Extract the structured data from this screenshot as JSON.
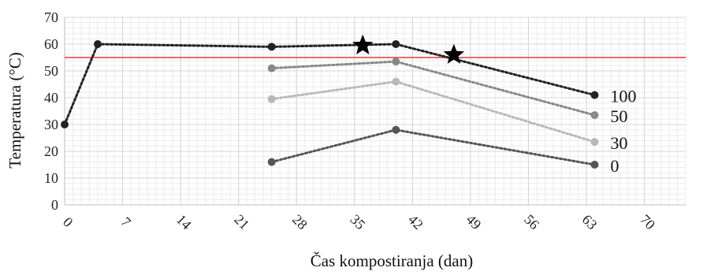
{
  "chart_data": {
    "type": "line",
    "xlabel": "Čas kompostiranja (dan)",
    "ylabel": "Temperatura (°C)",
    "xlim": [
      0,
      75
    ],
    "ylim": [
      0,
      70
    ],
    "x_ticks": [
      0,
      7,
      14,
      21,
      28,
      35,
      42,
      49,
      56,
      63,
      70
    ],
    "y_ticks": [
      0,
      10,
      20,
      30,
      40,
      50,
      60,
      70
    ],
    "grid": true,
    "reference_line": {
      "y": 55,
      "color": "#e03a3a"
    },
    "series": [
      {
        "name": "100",
        "color": "#222222",
        "points": [
          {
            "x": 0,
            "y": 30
          },
          {
            "x": 4,
            "y": 60
          },
          {
            "x": 25,
            "y": 59
          },
          {
            "x": 40,
            "y": 60
          },
          {
            "x": 64,
            "y": 41
          }
        ]
      },
      {
        "name": "50",
        "color": "#888888",
        "points": [
          {
            "x": 25,
            "y": 51
          },
          {
            "x": 40,
            "y": 53.5
          },
          {
            "x": 64,
            "y": 33.5
          }
        ]
      },
      {
        "name": "30",
        "color": "#b8b8b8",
        "points": [
          {
            "x": 25,
            "y": 39.5
          },
          {
            "x": 40,
            "y": 46
          },
          {
            "x": 64,
            "y": 23.5
          }
        ]
      },
      {
        "name": "0",
        "color": "#555555",
        "points": [
          {
            "x": 25,
            "y": 16
          },
          {
            "x": 40,
            "y": 28
          },
          {
            "x": 64,
            "y": 15
          }
        ]
      }
    ],
    "markers": [
      {
        "shape": "star",
        "x": 36,
        "y": 59.5,
        "color": "#000000"
      },
      {
        "shape": "star",
        "x": 47,
        "y": 56,
        "color": "#000000"
      }
    ]
  }
}
